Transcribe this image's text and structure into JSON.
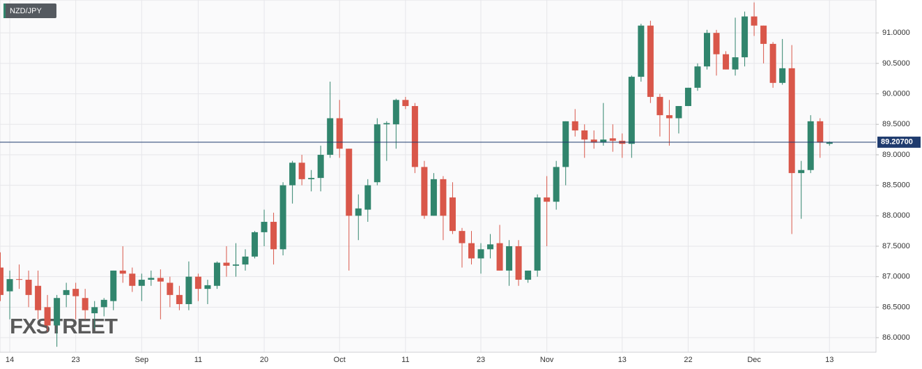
{
  "chart_data": {
    "type": "candlestick",
    "badge": "NZD/JPY",
    "watermark": "FXSTREET",
    "categories": [
      null,
      "14",
      null,
      null,
      null,
      null,
      null,
      null,
      "23",
      null,
      null,
      null,
      null,
      null,
      null,
      "Sep",
      null,
      null,
      null,
      null,
      null,
      "11",
      null,
      null,
      null,
      null,
      null,
      null,
      "20",
      null,
      null,
      null,
      null,
      null,
      null,
      null,
      "Oct",
      null,
      null,
      null,
      null,
      null,
      null,
      "11",
      null,
      null,
      null,
      null,
      null,
      null,
      null,
      "23",
      null,
      null,
      null,
      null,
      null,
      null,
      "Nov",
      null,
      null,
      null,
      null,
      null,
      null,
      null,
      "13",
      null,
      null,
      null,
      null,
      null,
      null,
      "22",
      null,
      null,
      null,
      null,
      null,
      null,
      "Dec",
      null,
      null,
      null,
      null,
      null,
      null,
      null,
      "13"
    ],
    "open": [
      87.15,
      86.76,
      86.96,
      86.95,
      86.85,
      86.5,
      86.2,
      86.7,
      86.8,
      86.65,
      86.4,
      86.5,
      86.6,
      87.1,
      87.05,
      86.85,
      86.95,
      86.98,
      86.9,
      86.7,
      86.55,
      87.0,
      86.8,
      86.85,
      87.23,
      87.18,
      87.2,
      87.33,
      87.73,
      87.9,
      87.45,
      88.5,
      88.87,
      88.6,
      88.62,
      89.0,
      89.6,
      89.1,
      88.0,
      88.1,
      88.55,
      89.5,
      89.5,
      89.9,
      89.8,
      88.8,
      88.0,
      88.6,
      88.3,
      87.75,
      87.55,
      87.3,
      87.45,
      87.55,
      87.1,
      87.5,
      86.95,
      87.1,
      88.3,
      88.23,
      88.8,
      89.55,
      89.4,
      89.25,
      89.2,
      89.27,
      89.23,
      89.18,
      90.28,
      91.12,
      89.95,
      89.65,
      89.6,
      89.8,
      90.1,
      90.45,
      91.0,
      90.65,
      90.4,
      90.6,
      91.27,
      91.12,
      90.82,
      90.18,
      90.42,
      88.7,
      88.75,
      89.55,
      89.18
    ],
    "high": [
      87.4,
      87.1,
      87.2,
      87.1,
      87.1,
      86.7,
      86.7,
      86.9,
      86.9,
      86.8,
      86.6,
      86.65,
      87.1,
      87.5,
      87.15,
      87.05,
      87.1,
      87.12,
      87.0,
      86.85,
      87.25,
      87.05,
      86.95,
      87.25,
      87.5,
      87.55,
      87.45,
      87.75,
      88.1,
      88.05,
      88.55,
      88.9,
      89.0,
      88.75,
      89.15,
      90.2,
      89.9,
      89.1,
      88.35,
      88.6,
      89.6,
      89.55,
      89.92,
      89.95,
      89.85,
      88.9,
      88.7,
      88.65,
      88.55,
      87.8,
      87.75,
      87.55,
      87.7,
      87.85,
      87.6,
      87.6,
      87.1,
      88.35,
      88.65,
      88.9,
      89.55,
      89.75,
      89.5,
      89.4,
      89.85,
      89.5,
      89.35,
      90.3,
      91.15,
      91.2,
      90.0,
      89.9,
      89.8,
      90.1,
      90.5,
      91.05,
      91.05,
      90.7,
      91.25,
      91.35,
      91.5,
      91.12,
      90.85,
      90.9,
      90.8,
      88.9,
      89.65,
      89.6,
      89.22
    ],
    "low": [
      86.6,
      86.3,
      86.8,
      86.5,
      86.3,
      86.1,
      85.85,
      86.5,
      86.3,
      86.3,
      86.15,
      86.35,
      86.45,
      86.9,
      86.75,
      86.6,
      86.85,
      86.3,
      86.5,
      86.45,
      86.45,
      86.6,
      86.55,
      86.8,
      87.0,
      87.0,
      87.1,
      87.3,
      87.5,
      87.2,
      87.35,
      88.2,
      88.5,
      88.4,
      88.4,
      88.95,
      88.95,
      87.1,
      87.6,
      87.9,
      88.5,
      88.9,
      89.1,
      89.75,
      88.7,
      87.95,
      88.0,
      87.6,
      87.7,
      87.15,
      87.2,
      87.05,
      87.3,
      87.1,
      86.85,
      86.85,
      86.9,
      87.0,
      87.5,
      88.1,
      88.5,
      89.3,
      88.95,
      89.1,
      89.15,
      89.05,
      88.95,
      88.95,
      90.2,
      89.85,
      89.3,
      89.15,
      89.35,
      89.8,
      90.05,
      90.4,
      90.3,
      90.4,
      90.3,
      90.45,
      90.95,
      90.5,
      90.1,
      90.15,
      87.7,
      87.95,
      88.7,
      88.95,
      89.15
    ],
    "close": [
      86.7,
      86.96,
      86.95,
      86.7,
      86.45,
      86.2,
      86.65,
      86.78,
      86.68,
      86.45,
      86.5,
      86.62,
      87.1,
      87.05,
      86.85,
      86.95,
      86.98,
      86.92,
      86.7,
      86.55,
      87.0,
      86.8,
      86.86,
      87.23,
      87.18,
      87.2,
      87.33,
      87.73,
      87.9,
      87.45,
      88.5,
      88.87,
      88.6,
      88.62,
      89.0,
      89.6,
      89.1,
      88.0,
      88.12,
      88.5,
      89.5,
      89.52,
      89.9,
      89.8,
      88.8,
      88.0,
      88.6,
      88.0,
      87.75,
      87.55,
      87.3,
      87.45,
      87.53,
      87.1,
      87.5,
      86.95,
      87.1,
      88.3,
      88.23,
      88.8,
      89.55,
      89.4,
      89.25,
      89.2,
      89.25,
      89.23,
      89.18,
      90.28,
      91.12,
      89.95,
      89.65,
      89.6,
      89.8,
      90.1,
      90.45,
      91.0,
      90.65,
      90.4,
      90.6,
      91.27,
      91.12,
      90.82,
      90.18,
      90.42,
      88.7,
      88.75,
      89.55,
      89.2,
      89.207
    ],
    "up_color": "#31856d",
    "down_color": "#d9574a",
    "ylim": [
      85.76,
      91.54
    ],
    "yticks": [
      {
        "value": 86,
        "label": "86.0000"
      },
      {
        "value": 86.5,
        "label": "86.5000"
      },
      {
        "value": 87,
        "label": "87.0000"
      },
      {
        "value": 87.5,
        "label": "87.5000"
      },
      {
        "value": 88,
        "label": "88.0000"
      },
      {
        "value": 88.5,
        "label": "88.5000"
      },
      {
        "value": 89,
        "label": "89.0000"
      },
      {
        "value": 89.5,
        "label": "89.5000"
      },
      {
        "value": 90,
        "label": "90.0000"
      },
      {
        "value": 90.5,
        "label": "90.5000"
      },
      {
        "value": 91,
        "label": "91.0000"
      }
    ],
    "last_price": {
      "value": 89.207,
      "label": "89.20700"
    },
    "last_price_color": "#1f3b6e",
    "grid": true
  }
}
